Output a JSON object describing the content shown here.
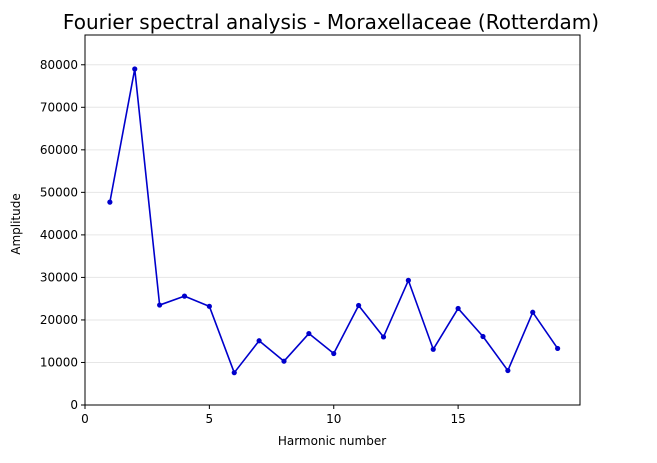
{
  "chart_data": {
    "type": "line",
    "title": "Fourier spectral analysis - Moraxellaceae (Rotterdam)",
    "xlabel": "Harmonic number",
    "ylabel": "Amplitude",
    "xlim": [
      0,
      19.9
    ],
    "ylim": [
      0,
      87000
    ],
    "xticks": [
      0,
      5,
      10,
      15
    ],
    "yticks": [
      0,
      10000,
      20000,
      30000,
      40000,
      50000,
      60000,
      70000,
      80000
    ],
    "grid": "y-axis only",
    "series": [
      {
        "color": "#0000cc",
        "marker": "circle",
        "x": [
          1,
          2,
          3,
          4,
          5,
          6,
          7,
          8,
          9,
          10,
          11,
          12,
          13,
          14,
          15,
          16,
          17,
          18,
          19
        ],
        "values": [
          47700,
          79000,
          23500,
          25600,
          23200,
          7600,
          15100,
          10300,
          16800,
          12100,
          23400,
          16000,
          29300,
          13100,
          22700,
          16100,
          8100,
          21800,
          13300
        ]
      }
    ]
  },
  "colors": {
    "line": "#0000cc",
    "grid": "#e6e6e6",
    "axes": "#000000",
    "background": "#ffffff"
  }
}
